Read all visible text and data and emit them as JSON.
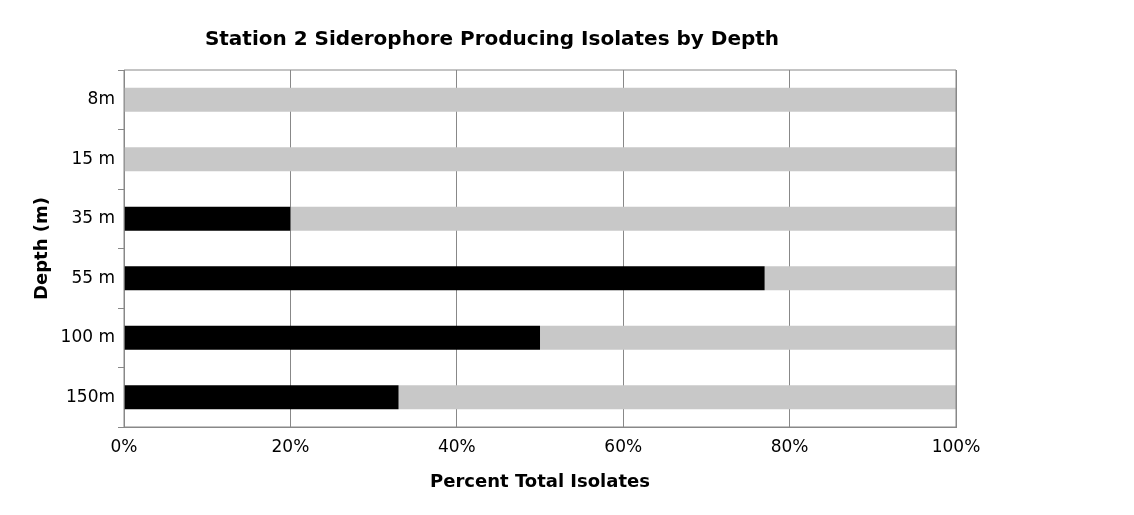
{
  "chart_data": {
    "type": "bar",
    "orientation": "horizontal",
    "stacked": true,
    "title": "Station 2 Siderophore Producing Isolates by Depth",
    "xlabel": "Percent Total Isolates",
    "ylabel": "Depth (m)",
    "categories": [
      "8m",
      "15 m",
      "35 m",
      "55 m",
      "100 m",
      "150m"
    ],
    "series": [
      {
        "color": "#000000",
        "values": [
          0,
          0,
          20,
          77,
          50,
          33
        ]
      },
      {
        "color": "#c8c8c8",
        "values": [
          100,
          100,
          80,
          23,
          50,
          67
        ]
      }
    ],
    "xlim": [
      0,
      100
    ],
    "xticks": [
      {
        "value": 0,
        "label": "0%"
      },
      {
        "value": 20,
        "label": "20%"
      },
      {
        "value": 40,
        "label": "40%"
      },
      {
        "value": 60,
        "label": "60%"
      },
      {
        "value": 80,
        "label": "80%"
      },
      {
        "value": 100,
        "label": "100%"
      }
    ],
    "grid": "x",
    "legend": false
  }
}
